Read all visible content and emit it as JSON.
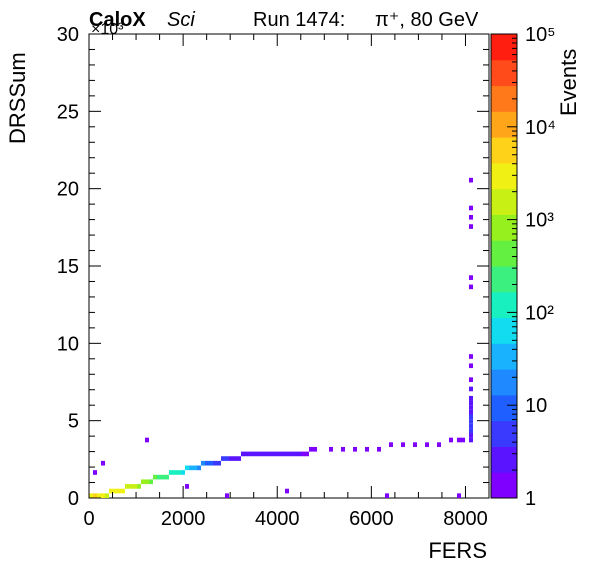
{
  "header": {
    "experiment_bold": "CaloX",
    "experiment_italic": "Sci",
    "run_label": "Run 1474:",
    "beam_label": "π⁺, 80 GeV"
  },
  "chart_data": {
    "type": "heatmap",
    "xlabel": "FERS",
    "ylabel": "DRSSum",
    "y_multiplier_label": "×10³",
    "xlim": [
      0,
      8500
    ],
    "ylim": [
      0,
      30
    ],
    "x_ticks": [
      0,
      2000,
      4000,
      6000,
      8000
    ],
    "y_ticks": [
      0,
      5,
      10,
      15,
      20,
      25,
      30
    ],
    "colorbar": {
      "label": "Events",
      "scale": "log",
      "range": [
        1,
        100000
      ],
      "tick_labels": [
        "1",
        "10",
        "10²",
        "10³",
        "10⁴",
        "10⁵"
      ],
      "tick_values": [
        1,
        10,
        100,
        1000,
        10000,
        100000
      ],
      "palette": [
        "#7f00ff",
        "#5b14ff",
        "#3a3aff",
        "#1f5fff",
        "#1f8aff",
        "#18b2ff",
        "#12dcf0",
        "#18f0c0",
        "#3cf07f",
        "#64f040",
        "#96f01e",
        "#c8f014",
        "#f0f014",
        "#ffd21a",
        "#ffa51a",
        "#ff781a",
        "#ff4b1a",
        "#ff1e10"
      ]
    },
    "grid": false,
    "bin_width_x": 85,
    "bin_height_y": 0.3,
    "bins": [
      {
        "x": 0,
        "y": 0,
        "count": 3000
      },
      {
        "x": 85,
        "y": 0,
        "count": 5000
      },
      {
        "x": 170,
        "y": 0,
        "count": 4000
      },
      {
        "x": 255,
        "y": 0,
        "count": 3000
      },
      {
        "x": 340,
        "y": 0,
        "count": 2000
      },
      {
        "x": 425,
        "y": 0.3,
        "count": 3000
      },
      {
        "x": 510,
        "y": 0.3,
        "count": 4000
      },
      {
        "x": 595,
        "y": 0.3,
        "count": 3000
      },
      {
        "x": 680,
        "y": 0.3,
        "count": 3000
      },
      {
        "x": 765,
        "y": 0.6,
        "count": 2000
      },
      {
        "x": 850,
        "y": 0.6,
        "count": 2000
      },
      {
        "x": 935,
        "y": 0.6,
        "count": 1500
      },
      {
        "x": 1020,
        "y": 0.6,
        "count": 1000
      },
      {
        "x": 1105,
        "y": 0.9,
        "count": 900
      },
      {
        "x": 1190,
        "y": 0.9,
        "count": 700
      },
      {
        "x": 1275,
        "y": 0.9,
        "count": 500
      },
      {
        "x": 1360,
        "y": 1.2,
        "count": 400
      },
      {
        "x": 1445,
        "y": 1.2,
        "count": 300
      },
      {
        "x": 1530,
        "y": 1.2,
        "count": 250
      },
      {
        "x": 1615,
        "y": 1.2,
        "count": 200
      },
      {
        "x": 1700,
        "y": 1.5,
        "count": 150
      },
      {
        "x": 1785,
        "y": 1.5,
        "count": 120
      },
      {
        "x": 1870,
        "y": 1.5,
        "count": 100
      },
      {
        "x": 1955,
        "y": 1.5,
        "count": 80
      },
      {
        "x": 2040,
        "y": 1.8,
        "count": 50
      },
      {
        "x": 2125,
        "y": 1.8,
        "count": 40
      },
      {
        "x": 2210,
        "y": 1.8,
        "count": 30
      },
      {
        "x": 2295,
        "y": 1.8,
        "count": 20
      },
      {
        "x": 2380,
        "y": 2.1,
        "count": 15
      },
      {
        "x": 2465,
        "y": 2.1,
        "count": 10
      },
      {
        "x": 2550,
        "y": 2.1,
        "count": 8
      },
      {
        "x": 2635,
        "y": 2.1,
        "count": 6
      },
      {
        "x": 2720,
        "y": 2.1,
        "count": 5
      },
      {
        "x": 2805,
        "y": 2.4,
        "count": 4
      },
      {
        "x": 2890,
        "y": 2.4,
        "count": 4
      },
      {
        "x": 2975,
        "y": 2.4,
        "count": 3
      },
      {
        "x": 3060,
        "y": 2.4,
        "count": 3
      },
      {
        "x": 3145,
        "y": 2.4,
        "count": 3
      },
      {
        "x": 3230,
        "y": 2.7,
        "count": 2
      },
      {
        "x": 3315,
        "y": 2.7,
        "count": 2
      },
      {
        "x": 3400,
        "y": 2.7,
        "count": 2
      },
      {
        "x": 3485,
        "y": 2.7,
        "count": 2
      },
      {
        "x": 3570,
        "y": 2.7,
        "count": 2
      },
      {
        "x": 3655,
        "y": 2.7,
        "count": 2
      },
      {
        "x": 3740,
        "y": 2.7,
        "count": 2
      },
      {
        "x": 3825,
        "y": 2.7,
        "count": 2
      },
      {
        "x": 3910,
        "y": 2.7,
        "count": 2
      },
      {
        "x": 3995,
        "y": 2.7,
        "count": 2
      },
      {
        "x": 4080,
        "y": 2.7,
        "count": 2
      },
      {
        "x": 4165,
        "y": 2.7,
        "count": 2
      },
      {
        "x": 4250,
        "y": 2.7,
        "count": 2
      },
      {
        "x": 4335,
        "y": 2.7,
        "count": 2
      },
      {
        "x": 4420,
        "y": 2.7,
        "count": 2
      },
      {
        "x": 4505,
        "y": 2.7,
        "count": 1
      },
      {
        "x": 4590,
        "y": 2.7,
        "count": 1
      },
      {
        "x": 4675,
        "y": 3.0,
        "count": 1
      },
      {
        "x": 4760,
        "y": 3.0,
        "count": 1
      },
      {
        "x": 5100,
        "y": 3.0,
        "count": 1
      },
      {
        "x": 5355,
        "y": 3.0,
        "count": 1
      },
      {
        "x": 5610,
        "y": 3.0,
        "count": 1
      },
      {
        "x": 5865,
        "y": 3.0,
        "count": 1
      },
      {
        "x": 6120,
        "y": 3.0,
        "count": 1
      },
      {
        "x": 6375,
        "y": 3.3,
        "count": 1
      },
      {
        "x": 6630,
        "y": 3.3,
        "count": 1
      },
      {
        "x": 6885,
        "y": 3.3,
        "count": 1
      },
      {
        "x": 7140,
        "y": 3.3,
        "count": 1
      },
      {
        "x": 7395,
        "y": 3.3,
        "count": 1
      },
      {
        "x": 7650,
        "y": 3.6,
        "count": 1
      },
      {
        "x": 7820,
        "y": 3.6,
        "count": 1
      },
      {
        "x": 7905,
        "y": 3.6,
        "count": 1
      },
      {
        "x": 8075,
        "y": 3.6,
        "count": 2
      },
      {
        "x": 8075,
        "y": 3.9,
        "count": 3
      },
      {
        "x": 8075,
        "y": 4.2,
        "count": 4
      },
      {
        "x": 8075,
        "y": 4.5,
        "count": 4
      },
      {
        "x": 8075,
        "y": 4.8,
        "count": 5
      },
      {
        "x": 8075,
        "y": 5.1,
        "count": 4
      },
      {
        "x": 8075,
        "y": 5.4,
        "count": 3
      },
      {
        "x": 8075,
        "y": 5.7,
        "count": 2
      },
      {
        "x": 8075,
        "y": 6.0,
        "count": 2
      },
      {
        "x": 8075,
        "y": 6.3,
        "count": 2
      },
      {
        "x": 8075,
        "y": 6.9,
        "count": 2
      },
      {
        "x": 8075,
        "y": 7.5,
        "count": 1
      },
      {
        "x": 8075,
        "y": 8.4,
        "count": 1
      },
      {
        "x": 8075,
        "y": 9.0,
        "count": 1
      },
      {
        "x": 8075,
        "y": 13.5,
        "count": 1
      },
      {
        "x": 8075,
        "y": 14.1,
        "count": 1
      },
      {
        "x": 8075,
        "y": 17.4,
        "count": 1
      },
      {
        "x": 8075,
        "y": 18.0,
        "count": 1
      },
      {
        "x": 8075,
        "y": 18.6,
        "count": 1
      },
      {
        "x": 8075,
        "y": 20.4,
        "count": 1
      },
      {
        "x": 1190,
        "y": 3.6,
        "count": 1
      },
      {
        "x": 255,
        "y": 2.1,
        "count": 1
      },
      {
        "x": 85,
        "y": 1.5,
        "count": 1
      },
      {
        "x": 4165,
        "y": 0.3,
        "count": 1
      },
      {
        "x": 6290,
        "y": 0,
        "count": 1
      },
      {
        "x": 7820,
        "y": 0,
        "count": 1
      },
      {
        "x": 2890,
        "y": 0,
        "count": 1
      },
      {
        "x": 2040,
        "y": 0.6,
        "count": 1
      }
    ]
  }
}
